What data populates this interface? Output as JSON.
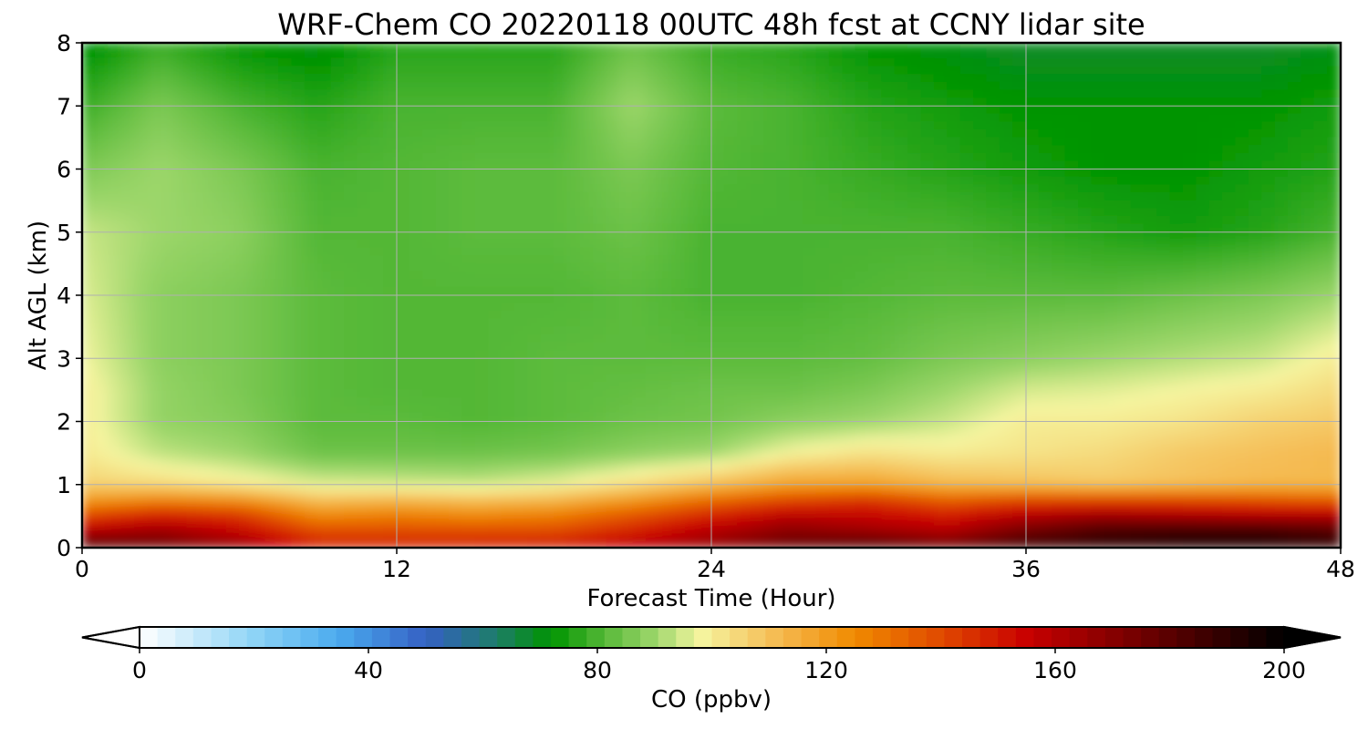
{
  "chart_data": {
    "type": "heatmap",
    "title": "WRF-Chem CO  20220118 00UTC 48h fcst at CCNY lidar site",
    "xlabel": "Forecast Time (Hour)",
    "ylabel": "Alt AGL (km)",
    "xlim": [
      0,
      48
    ],
    "ylim": [
      0,
      8
    ],
    "x_ticks": [
      "0",
      "12",
      "24",
      "36",
      "48"
    ],
    "y_ticks": [
      "0",
      "1",
      "2",
      "3",
      "4",
      "5",
      "6",
      "7",
      "8"
    ],
    "grid": true,
    "colorbar": {
      "label": "CO  (ppbv)",
      "range": [
        0,
        200
      ],
      "ticks": [
        "0",
        "40",
        "80",
        "120",
        "160",
        "200"
      ],
      "extend": "both",
      "stops": [
        {
          "v": 0,
          "c": "#ffffff"
        },
        {
          "v": 20,
          "c": "#8ed4f6"
        },
        {
          "v": 35,
          "c": "#4aaaee"
        },
        {
          "v": 50,
          "c": "#3560c4"
        },
        {
          "v": 62,
          "c": "#1e7c6c"
        },
        {
          "v": 72,
          "c": "#009400"
        },
        {
          "v": 82,
          "c": "#5cbb3c"
        },
        {
          "v": 90,
          "c": "#9cd66a"
        },
        {
          "v": 98,
          "c": "#f5f5a0"
        },
        {
          "v": 110,
          "c": "#f5c05a"
        },
        {
          "v": 125,
          "c": "#f08a00"
        },
        {
          "v": 140,
          "c": "#e04a00"
        },
        {
          "v": 155,
          "c": "#c80000"
        },
        {
          "v": 175,
          "c": "#700000"
        },
        {
          "v": 200,
          "c": "#000000"
        }
      ]
    },
    "x": [
      0,
      3,
      6,
      9,
      12,
      15,
      18,
      21,
      24,
      27,
      30,
      33,
      36,
      39,
      42,
      45,
      48
    ],
    "y": [
      0,
      0.25,
      0.5,
      0.75,
      1,
      1.5,
      2,
      2.5,
      3,
      4,
      5,
      6,
      7,
      8
    ],
    "z": [
      [
        185,
        178,
        168,
        150,
        150,
        150,
        152,
        160,
        168,
        178,
        185,
        178,
        188,
        190,
        192,
        192,
        190
      ],
      [
        160,
        165,
        155,
        140,
        140,
        140,
        140,
        148,
        160,
        170,
        165,
        160,
        175,
        185,
        188,
        188,
        182
      ],
      [
        140,
        150,
        145,
        125,
        128,
        125,
        128,
        138,
        148,
        158,
        155,
        150,
        160,
        165,
        162,
        160,
        160
      ],
      [
        120,
        125,
        122,
        110,
        112,
        110,
        112,
        120,
        132,
        140,
        145,
        135,
        140,
        140,
        140,
        138,
        135
      ],
      [
        106,
        104,
        100,
        96,
        95,
        94,
        97,
        103,
        110,
        118,
        118,
        112,
        110,
        108,
        110,
        112,
        112
      ],
      [
        101,
        93,
        90,
        84,
        84,
        84,
        85,
        88,
        90,
        98,
        102,
        100,
        102,
        104,
        108,
        110,
        112
      ],
      [
        100,
        89,
        87,
        82,
        82,
        81,
        82,
        84,
        85,
        88,
        90,
        94,
        100,
        100,
        102,
        106,
        108
      ],
      [
        100,
        89,
        86,
        82,
        81,
        81,
        82,
        83,
        84,
        84,
        86,
        90,
        95,
        96,
        98,
        100,
        104
      ],
      [
        98,
        88,
        86,
        82,
        81,
        81,
        82,
        82,
        82,
        82,
        83,
        86,
        88,
        90,
        92,
        94,
        100
      ],
      [
        96,
        88,
        86,
        82,
        81,
        81,
        81,
        82,
        80,
        80,
        81,
        82,
        82,
        82,
        84,
        86,
        90
      ],
      [
        94,
        90,
        88,
        81,
        81,
        82,
        82,
        84,
        80,
        80,
        80,
        80,
        78,
        76,
        74,
        76,
        80
      ],
      [
        86,
        90,
        86,
        80,
        81,
        82,
        82,
        86,
        81,
        80,
        78,
        76,
        74,
        72,
        72,
        74,
        76
      ],
      [
        78,
        86,
        80,
        76,
        80,
        80,
        80,
        90,
        82,
        80,
        76,
        74,
        72,
        72,
        72,
        72,
        74
      ],
      [
        70,
        78,
        72,
        70,
        76,
        76,
        76,
        84,
        78,
        76,
        72,
        70,
        68,
        68,
        68,
        68,
        70
      ]
    ]
  }
}
